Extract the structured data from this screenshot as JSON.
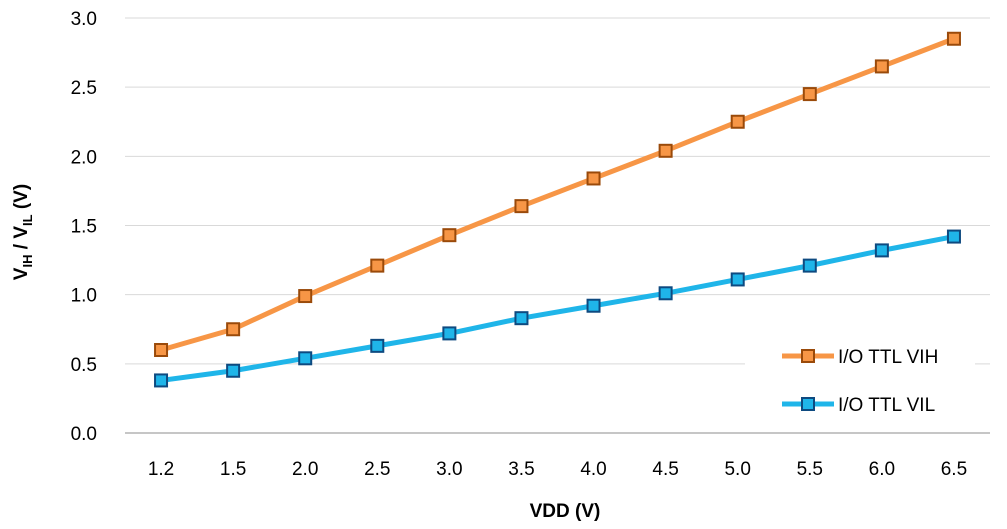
{
  "chart_data": {
    "type": "line",
    "categories": [
      "1.2",
      "1.5",
      "2.0",
      "2.5",
      "3.0",
      "3.5",
      "4.0",
      "4.5",
      "5.0",
      "5.5",
      "6.0",
      "6.5"
    ],
    "xlabel": "VDD (V)",
    "ylabel": {
      "v1": "V",
      "v1_sub": "IH",
      "sep": " / ",
      "v2": "V",
      "v2_sub": "IL",
      "unit": " (V)"
    },
    "ylim": [
      0,
      3.0
    ],
    "yticks": [
      "0.0",
      "0.5",
      "1.0",
      "1.5",
      "2.0",
      "2.5",
      "3.0"
    ],
    "grid": true,
    "legend_position": "bottom-right",
    "series": [
      {
        "name": "I/O TTL VIH",
        "line_color": "#F79646",
        "marker_fill": "#F79646",
        "marker_stroke": "#9A4A0A",
        "values": [
          0.6,
          0.75,
          0.99,
          1.21,
          1.43,
          1.64,
          1.84,
          2.04,
          2.25,
          2.45,
          2.65,
          2.85
        ]
      },
      {
        "name": "I/O TTL VIL",
        "line_color": "#1FB5E9",
        "marker_fill": "#1FB5E9",
        "marker_stroke": "#0E4A80",
        "values": [
          0.38,
          0.45,
          0.54,
          0.63,
          0.72,
          0.83,
          0.92,
          1.01,
          1.11,
          1.21,
          1.32,
          1.42
        ]
      }
    ]
  }
}
